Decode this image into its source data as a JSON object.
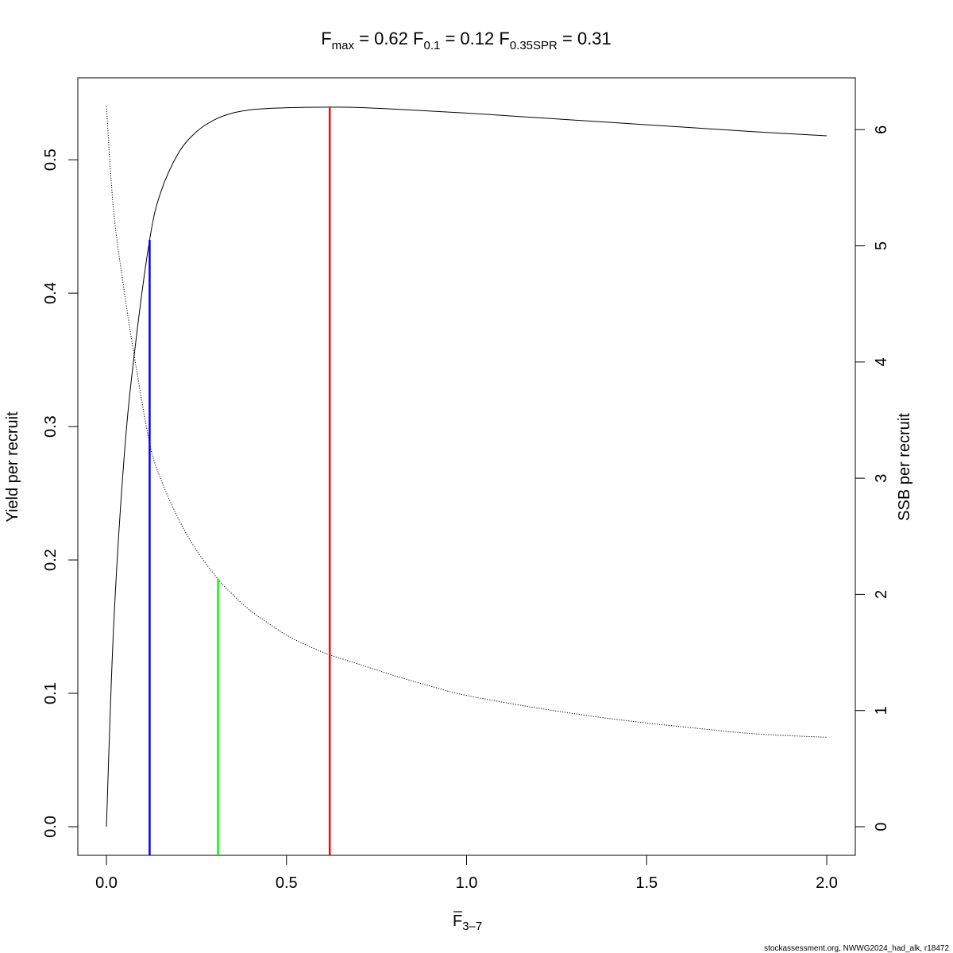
{
  "chart_data": {
    "type": "line",
    "title": {
      "fmax": {
        "base": "F",
        "sub": "max",
        "value": "0.62"
      },
      "f01": {
        "base": "F",
        "sub": "0.1",
        "value": "0.12"
      },
      "fspr": {
        "base": "F",
        "sub": "0.35SPR",
        "value": "0.31"
      }
    },
    "xlabel": {
      "base": "F",
      "sub": "3–7"
    },
    "ylabel_left": "Yield per recruit",
    "ylabel_right": "SSB per recruit",
    "xlim": [
      0,
      2
    ],
    "ylim_left": [
      0,
      0.54
    ],
    "ylim_right": [
      0,
      6.2
    ],
    "x_ticks": [
      "0.0",
      "0.5",
      "1.0",
      "1.5",
      "2.0"
    ],
    "y_left_ticks": [
      "0.0",
      "0.1",
      "0.2",
      "0.3",
      "0.4",
      "0.5"
    ],
    "y_right_ticks": [
      "0",
      "1",
      "2",
      "3",
      "4",
      "5",
      "6"
    ],
    "grid": false,
    "series": [
      {
        "axis": "left",
        "style": "solid",
        "color": "#000000",
        "x": [
          0,
          0.02,
          0.05,
          0.08,
          0.12,
          0.15,
          0.2,
          0.25,
          0.3,
          0.35,
          0.4,
          0.45,
          0.5,
          0.55,
          0.62,
          0.7,
          0.8,
          0.9,
          1.0,
          1.2,
          1.4,
          1.6,
          1.8,
          2.0
        ],
        "y": [
          0,
          0.15,
          0.28,
          0.36,
          0.44,
          0.475,
          0.505,
          0.521,
          0.53,
          0.535,
          0.5375,
          0.5385,
          0.539,
          0.5393,
          0.5395,
          0.5392,
          0.538,
          0.5365,
          0.535,
          0.5315,
          0.528,
          0.5245,
          0.521,
          0.518
        ]
      },
      {
        "axis": "right",
        "style": "dotted",
        "color": "#000000",
        "x": [
          0,
          0.02,
          0.05,
          0.08,
          0.12,
          0.15,
          0.2,
          0.25,
          0.31,
          0.35,
          0.4,
          0.45,
          0.5,
          0.55,
          0.62,
          0.7,
          0.8,
          0.9,
          1.0,
          1.2,
          1.4,
          1.6,
          1.8,
          2.0
        ],
        "y": [
          6.2,
          5.3,
          4.6,
          4.0,
          3.3,
          3.0,
          2.65,
          2.38,
          2.13,
          2.0,
          1.86,
          1.75,
          1.65,
          1.57,
          1.48,
          1.4,
          1.3,
          1.21,
          1.13,
          1.02,
          0.93,
          0.86,
          0.8,
          0.77
        ]
      }
    ],
    "vlines": [
      {
        "name": "F0.1",
        "x": 0.12,
        "y": 0.44,
        "color": "#0000ff"
      },
      {
        "name": "F0.35SPR",
        "x": 0.31,
        "y": 0.186,
        "color": "#00ff00"
      },
      {
        "name": "Fmax",
        "x": 0.62,
        "y": 0.539,
        "color": "#ff0000"
      }
    ]
  },
  "footer": "stockassessment.org, NWWG2024_had_alk, r18472"
}
